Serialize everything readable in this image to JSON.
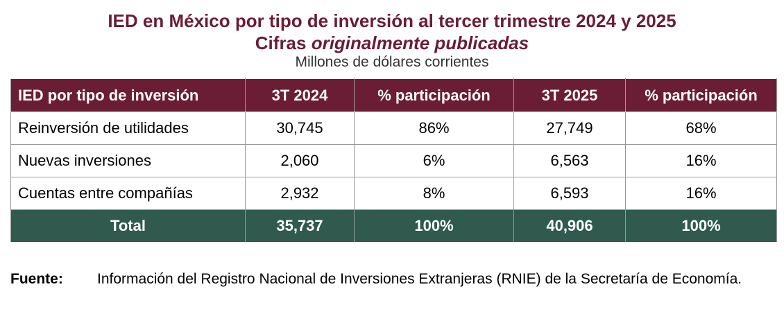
{
  "title": {
    "line1": "IED en México por tipo de inversión al tercer trimestre 2024 y 2025",
    "line2_prefix": "Cifras ",
    "line2_italic": "originalmente publicadas",
    "subtitle": "Millones de dólares corrientes"
  },
  "table": {
    "headers": [
      "IED por tipo de inversión",
      "3T 2024",
      "% participación",
      "3T 2025",
      "% participación"
    ],
    "rows": [
      [
        "Reinversión de utilidades",
        "30,745",
        "86%",
        "27,749",
        "68%"
      ],
      [
        "Nuevas inversiones",
        "2,060",
        "6%",
        "6,563",
        "16%"
      ],
      [
        "Cuentas entre compañías",
        "2,932",
        "8%",
        "6,593",
        "16%"
      ]
    ],
    "total": [
      "Total",
      "35,737",
      "100%",
      "40,906",
      "100%"
    ]
  },
  "source": {
    "label": "Fuente:",
    "text": "Información del Registro Nacional de Inversiones Extranjeras (RNIE) de la Secretaría de Economía."
  },
  "colors": {
    "header_bg": "#6b1d35",
    "total_bg": "#2f5a4d",
    "title_color": "#6b1d35"
  }
}
